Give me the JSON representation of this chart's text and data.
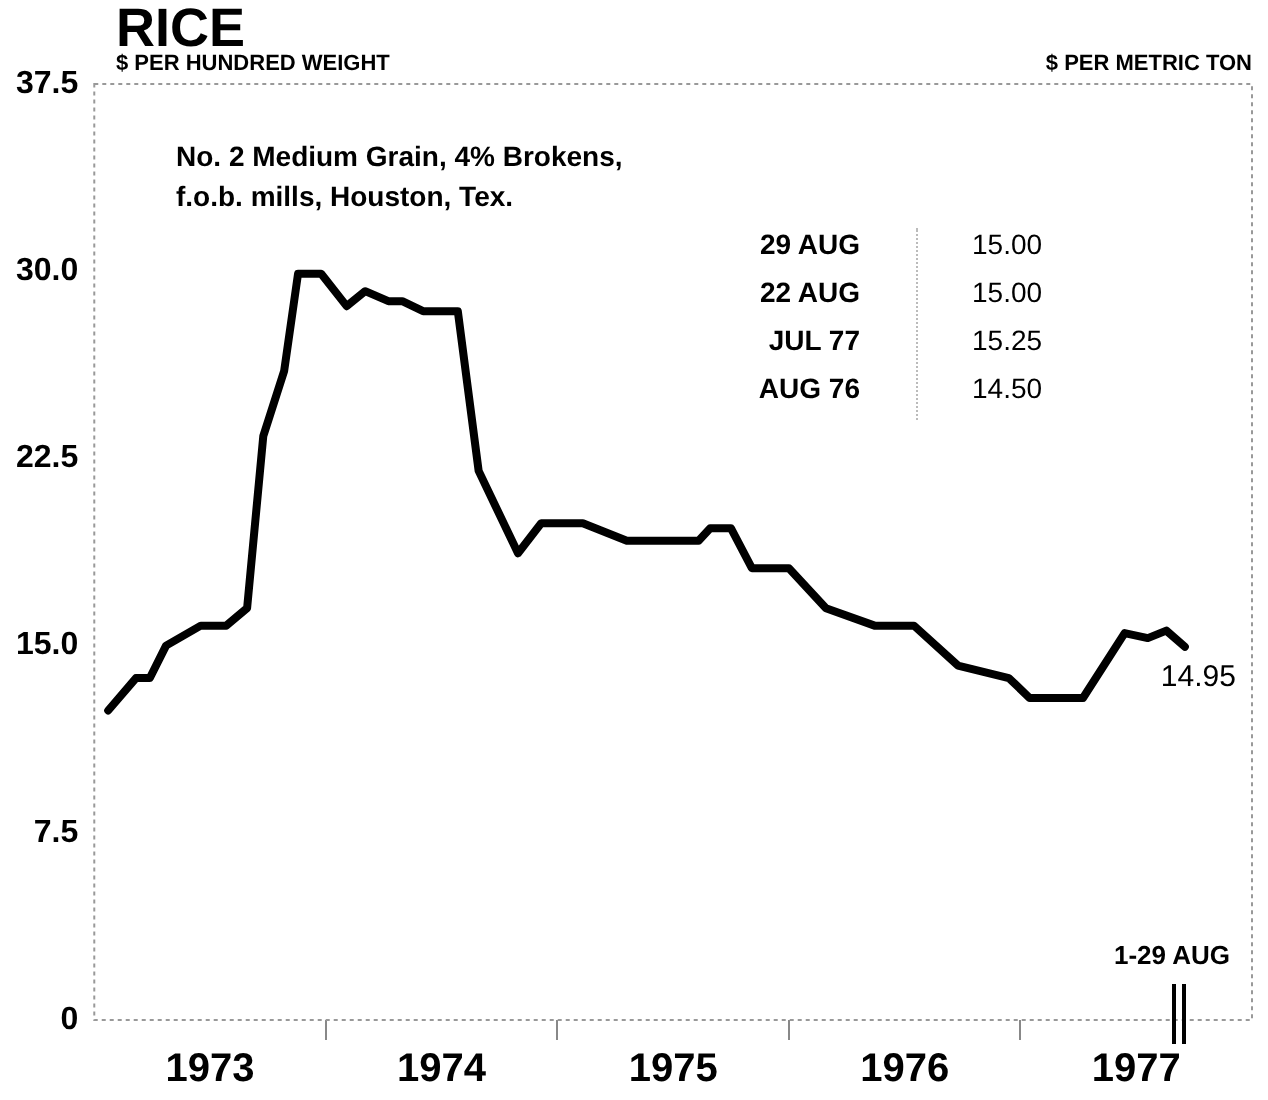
{
  "chart_data": {
    "type": "line",
    "title": "RICE",
    "ylabel": "$ PER HUNDRED WEIGHT",
    "y2label": "$ PER METRIC TON",
    "x": [
      1973.06,
      1973.18,
      1973.24,
      1973.31,
      1973.46,
      1973.57,
      1973.66,
      1973.73,
      1973.82,
      1973.88,
      1973.98,
      1974.09,
      1974.17,
      1974.27,
      1974.33,
      1974.42,
      1974.57,
      1974.66,
      1974.83,
      1974.93,
      1975.11,
      1975.3,
      1975.61,
      1975.66,
      1975.75,
      1975.84,
      1976.0,
      1976.16,
      1976.37,
      1976.54,
      1976.73,
      1976.95,
      1977.04,
      1977.27,
      1977.45,
      1977.55,
      1977.63,
      1977.71
    ],
    "series": [
      {
        "color": "#000000",
        "values": [
          12.4,
          13.7,
          13.7,
          15.0,
          15.8,
          15.8,
          16.5,
          23.4,
          26.0,
          29.9,
          29.9,
          28.6,
          29.2,
          28.8,
          28.8,
          28.4,
          28.4,
          22.0,
          18.7,
          19.9,
          19.9,
          19.2,
          19.2,
          19.7,
          19.7,
          18.1,
          18.1,
          16.5,
          15.8,
          15.8,
          14.2,
          13.7,
          12.9,
          12.9,
          15.5,
          15.3,
          15.6,
          14.95
        ]
      }
    ],
    "xlim": [
      1973,
      1978
    ],
    "xticks": [
      {
        "value": 1973.5,
        "label": "1973"
      },
      {
        "value": 1974,
        "label": null
      },
      {
        "value": 1974.5,
        "label": "1974"
      },
      {
        "value": 1975,
        "label": null
      },
      {
        "value": 1975.5,
        "label": "1975"
      },
      {
        "value": 1976,
        "label": null
      },
      {
        "value": 1976.5,
        "label": "1976"
      },
      {
        "value": 1977,
        "label": null
      },
      {
        "value": 1977.5,
        "label": "1977"
      }
    ],
    "ylim": [
      0,
      37.5
    ],
    "yticks": [
      {
        "value": 0,
        "label": "0"
      },
      7.5,
      {
        "value": 15,
        "label": "15.0"
      },
      22.5,
      {
        "value": 30,
        "label": "30.0"
      },
      37.5
    ],
    "marker": "none",
    "line_style": "solid",
    "grid": false,
    "legend": false,
    "annotations": [
      "No. 2 Medium Grain, 4% Brokens,",
      "f.o.b. mills,  Houston, Tex.",
      "29 AUG",
      "15.00",
      "22 AUG",
      "15.00",
      "JUL 77",
      "15.25",
      "AUG 76",
      "14.50",
      "1-29 AUG",
      {
        "text": "14.95",
        "x": 1977.71,
        "y": 14.95
      }
    ]
  }
}
